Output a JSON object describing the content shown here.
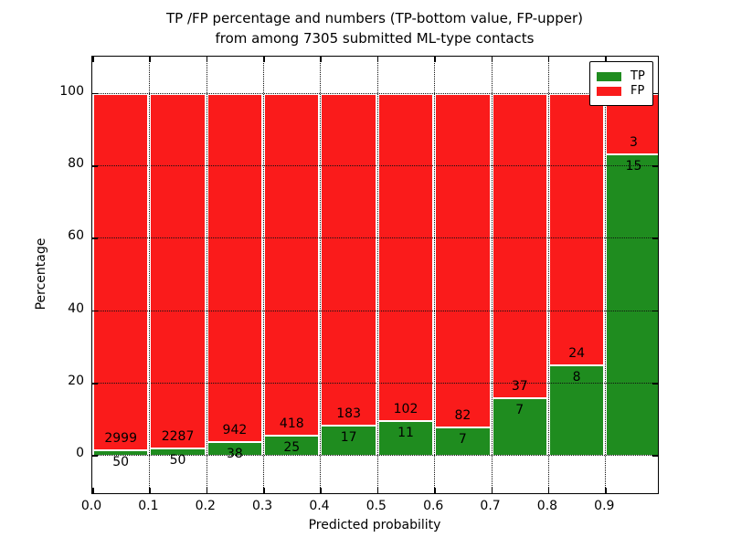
{
  "title": {
    "line1": "TP /FP percentage and numbers (TP-bottom value, FP-upper)",
    "line2": "from among 7305 submitted ML-type contacts"
  },
  "axes": {
    "xlabel": "Predicted probability",
    "ylabel": "Percentage",
    "xtick_labels": [
      "0.0",
      "0.1",
      "0.2",
      "0.3",
      "0.4",
      "0.5",
      "0.6",
      "0.7",
      "0.8",
      "0.9"
    ],
    "xtick_values": [
      0.0,
      0.1,
      0.2,
      0.3,
      0.4,
      0.5,
      0.6,
      0.7,
      0.8,
      0.9
    ],
    "ytick_labels": [
      "0",
      "20",
      "40",
      "60",
      "80",
      "100"
    ],
    "ytick_values": [
      0,
      20,
      40,
      60,
      80,
      100
    ],
    "xlim": [
      0,
      0.9925
    ],
    "ylim": [
      -10.5,
      110
    ],
    "grid": "dotted"
  },
  "legend": {
    "position": "upper right",
    "items": [
      {
        "label": "TP",
        "color": "#1f8c1f"
      },
      {
        "label": "FP",
        "color": "#fa1b1b"
      }
    ]
  },
  "colors": {
    "tp_green": "#1f8c1f",
    "fp_red": "#fa1b1b",
    "background": "#ffffff",
    "axis": "#000000"
  },
  "chart_data": {
    "type": "bar",
    "stacked": true,
    "normalization": "each bar totals 100%",
    "total_contacts": 7305,
    "bin_width": 0.1,
    "title": "TP /FP percentage and numbers (TP-bottom value, FP-upper) from among 7305 submitted ML-type contacts",
    "xlabel": "Predicted probability",
    "ylabel": "Percentage",
    "legend_entries": [
      "TP",
      "FP"
    ],
    "bins": [
      {
        "x_start": 0.0,
        "tp": 50,
        "fp": 2999
      },
      {
        "x_start": 0.1,
        "tp": 50,
        "fp": 2287
      },
      {
        "x_start": 0.2,
        "tp": 38,
        "fp": 942
      },
      {
        "x_start": 0.3,
        "tp": 25,
        "fp": 418
      },
      {
        "x_start": 0.4,
        "tp": 17,
        "fp": 183
      },
      {
        "x_start": 0.5,
        "tp": 11,
        "fp": 102
      },
      {
        "x_start": 0.6,
        "tp": 7,
        "fp": 82
      },
      {
        "x_start": 0.7,
        "tp": 7,
        "fp": 37
      },
      {
        "x_start": 0.8,
        "tp": 8,
        "fp": 24
      },
      {
        "x_start": 0.9,
        "tp": 15,
        "fp": 3
      }
    ]
  }
}
